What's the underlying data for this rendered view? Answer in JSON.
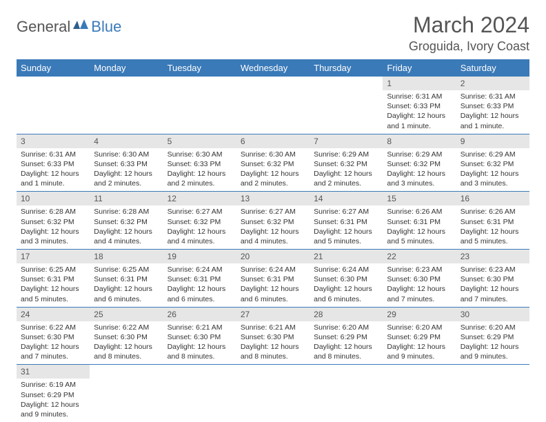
{
  "logo": {
    "general": "General",
    "blue": "Blue"
  },
  "title": "March 2024",
  "location": "Groguida, Ivory Coast",
  "colors": {
    "header_bg": "#3a7ab8",
    "header_text": "#ffffff",
    "day_number_bg": "#e6e6e6",
    "border": "#3a7ab8",
    "text": "#333333",
    "logo_gray": "#555555",
    "logo_blue": "#3a7ab8"
  },
  "typography": {
    "title_fontsize": 32,
    "location_fontsize": 18,
    "header_fontsize": 13,
    "daynum_fontsize": 12,
    "detail_fontsize": 10.5
  },
  "weekdays": [
    "Sunday",
    "Monday",
    "Tuesday",
    "Wednesday",
    "Thursday",
    "Friday",
    "Saturday"
  ],
  "weeks": [
    [
      null,
      null,
      null,
      null,
      null,
      {
        "n": "1",
        "sunrise": "6:31 AM",
        "sunset": "6:33 PM",
        "daylight": "12 hours and 1 minute."
      },
      {
        "n": "2",
        "sunrise": "6:31 AM",
        "sunset": "6:33 PM",
        "daylight": "12 hours and 1 minute."
      }
    ],
    [
      {
        "n": "3",
        "sunrise": "6:31 AM",
        "sunset": "6:33 PM",
        "daylight": "12 hours and 1 minute."
      },
      {
        "n": "4",
        "sunrise": "6:30 AM",
        "sunset": "6:33 PM",
        "daylight": "12 hours and 2 minutes."
      },
      {
        "n": "5",
        "sunrise": "6:30 AM",
        "sunset": "6:33 PM",
        "daylight": "12 hours and 2 minutes."
      },
      {
        "n": "6",
        "sunrise": "6:30 AM",
        "sunset": "6:32 PM",
        "daylight": "12 hours and 2 minutes."
      },
      {
        "n": "7",
        "sunrise": "6:29 AM",
        "sunset": "6:32 PM",
        "daylight": "12 hours and 2 minutes."
      },
      {
        "n": "8",
        "sunrise": "6:29 AM",
        "sunset": "6:32 PM",
        "daylight": "12 hours and 3 minutes."
      },
      {
        "n": "9",
        "sunrise": "6:29 AM",
        "sunset": "6:32 PM",
        "daylight": "12 hours and 3 minutes."
      }
    ],
    [
      {
        "n": "10",
        "sunrise": "6:28 AM",
        "sunset": "6:32 PM",
        "daylight": "12 hours and 3 minutes."
      },
      {
        "n": "11",
        "sunrise": "6:28 AM",
        "sunset": "6:32 PM",
        "daylight": "12 hours and 4 minutes."
      },
      {
        "n": "12",
        "sunrise": "6:27 AM",
        "sunset": "6:32 PM",
        "daylight": "12 hours and 4 minutes."
      },
      {
        "n": "13",
        "sunrise": "6:27 AM",
        "sunset": "6:32 PM",
        "daylight": "12 hours and 4 minutes."
      },
      {
        "n": "14",
        "sunrise": "6:27 AM",
        "sunset": "6:31 PM",
        "daylight": "12 hours and 5 minutes."
      },
      {
        "n": "15",
        "sunrise": "6:26 AM",
        "sunset": "6:31 PM",
        "daylight": "12 hours and 5 minutes."
      },
      {
        "n": "16",
        "sunrise": "6:26 AM",
        "sunset": "6:31 PM",
        "daylight": "12 hours and 5 minutes."
      }
    ],
    [
      {
        "n": "17",
        "sunrise": "6:25 AM",
        "sunset": "6:31 PM",
        "daylight": "12 hours and 5 minutes."
      },
      {
        "n": "18",
        "sunrise": "6:25 AM",
        "sunset": "6:31 PM",
        "daylight": "12 hours and 6 minutes."
      },
      {
        "n": "19",
        "sunrise": "6:24 AM",
        "sunset": "6:31 PM",
        "daylight": "12 hours and 6 minutes."
      },
      {
        "n": "20",
        "sunrise": "6:24 AM",
        "sunset": "6:31 PM",
        "daylight": "12 hours and 6 minutes."
      },
      {
        "n": "21",
        "sunrise": "6:24 AM",
        "sunset": "6:30 PM",
        "daylight": "12 hours and 6 minutes."
      },
      {
        "n": "22",
        "sunrise": "6:23 AM",
        "sunset": "6:30 PM",
        "daylight": "12 hours and 7 minutes."
      },
      {
        "n": "23",
        "sunrise": "6:23 AM",
        "sunset": "6:30 PM",
        "daylight": "12 hours and 7 minutes."
      }
    ],
    [
      {
        "n": "24",
        "sunrise": "6:22 AM",
        "sunset": "6:30 PM",
        "daylight": "12 hours and 7 minutes."
      },
      {
        "n": "25",
        "sunrise": "6:22 AM",
        "sunset": "6:30 PM",
        "daylight": "12 hours and 8 minutes."
      },
      {
        "n": "26",
        "sunrise": "6:21 AM",
        "sunset": "6:30 PM",
        "daylight": "12 hours and 8 minutes."
      },
      {
        "n": "27",
        "sunrise": "6:21 AM",
        "sunset": "6:30 PM",
        "daylight": "12 hours and 8 minutes."
      },
      {
        "n": "28",
        "sunrise": "6:20 AM",
        "sunset": "6:29 PM",
        "daylight": "12 hours and 8 minutes."
      },
      {
        "n": "29",
        "sunrise": "6:20 AM",
        "sunset": "6:29 PM",
        "daylight": "12 hours and 9 minutes."
      },
      {
        "n": "30",
        "sunrise": "6:20 AM",
        "sunset": "6:29 PM",
        "daylight": "12 hours and 9 minutes."
      }
    ],
    [
      {
        "n": "31",
        "sunrise": "6:19 AM",
        "sunset": "6:29 PM",
        "daylight": "12 hours and 9 minutes."
      },
      null,
      null,
      null,
      null,
      null,
      null
    ]
  ],
  "labels": {
    "sunrise_prefix": "Sunrise: ",
    "sunset_prefix": "Sunset: ",
    "daylight_prefix": "Daylight: "
  }
}
